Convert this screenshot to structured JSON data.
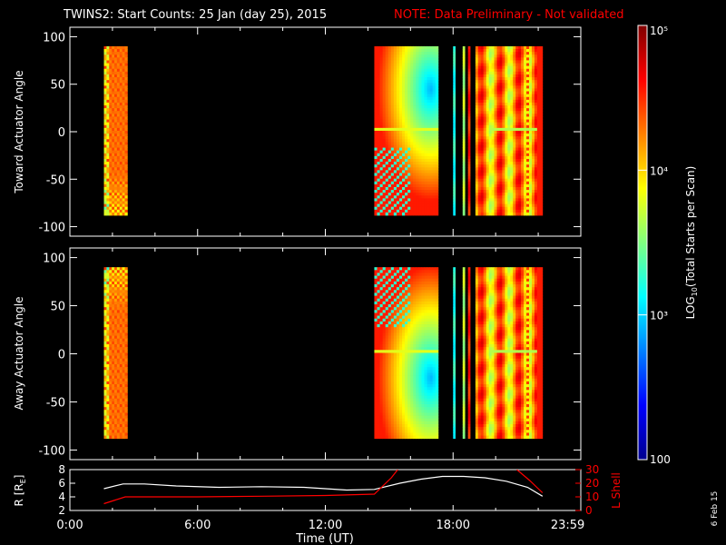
{
  "title": {
    "main": "TWINS2: Start Counts: 25 Jan (day  25), 2015",
    "note": "NOTE: Data Preliminary - Not validated",
    "note_color": "#ff0000"
  },
  "colorbar": {
    "label_pre": "LOG",
    "label_sub": "10",
    "label_post": "(Total Starts per Scan)",
    "ticks": [
      {
        "value": 100,
        "text": "100"
      },
      {
        "value": 1000,
        "text": "10³"
      },
      {
        "value": 10000,
        "text": "10⁴"
      },
      {
        "value": 100000,
        "text": "10⁵"
      }
    ],
    "range": [
      100,
      100000
    ],
    "scale": "log"
  },
  "stamp": "6 Feb 15",
  "chart_data": [
    {
      "type": "heatmap",
      "ylabel": "Toward Actuator Angle",
      "xlim": [
        0,
        24
      ],
      "ylim": [
        -110,
        110
      ],
      "yticks": [
        100,
        50,
        0,
        -50,
        -100
      ],
      "angle_range": [
        -88,
        90
      ],
      "blocks": [
        {
          "t0": 1.6,
          "t1": 2.7,
          "level": 0.8,
          "pattern": "edge-striped"
        },
        {
          "t0": 14.3,
          "t1": 17.3,
          "level": 0.45,
          "pattern": "cyan-core"
        },
        {
          "t0": 18.0,
          "t1": 18.1,
          "level": 0.4,
          "pattern": "line"
        },
        {
          "t0": 18.45,
          "t1": 18.55,
          "level": 0.55,
          "pattern": "line"
        },
        {
          "t0": 18.7,
          "t1": 18.8,
          "level": 0.85,
          "pattern": "line"
        },
        {
          "t0": 19.05,
          "t1": 22.2,
          "level": 0.78,
          "pattern": "banded"
        }
      ]
    },
    {
      "type": "heatmap",
      "ylabel": "Away Actuator Angle",
      "xlim": [
        0,
        24
      ],
      "ylim": [
        -110,
        110
      ],
      "yticks": [
        100,
        50,
        0,
        -50,
        -100
      ],
      "angle_range": [
        -88,
        90
      ],
      "blocks": [
        {
          "t0": 1.6,
          "t1": 2.7,
          "level": 0.8,
          "pattern": "edge-striped"
        },
        {
          "t0": 14.3,
          "t1": 17.3,
          "level": 0.45,
          "pattern": "cyan-core"
        },
        {
          "t0": 18.0,
          "t1": 18.1,
          "level": 0.4,
          "pattern": "line"
        },
        {
          "t0": 18.45,
          "t1": 18.55,
          "level": 0.55,
          "pattern": "line"
        },
        {
          "t0": 18.7,
          "t1": 18.8,
          "level": 0.85,
          "pattern": "line"
        },
        {
          "t0": 19.05,
          "t1": 22.2,
          "level": 0.78,
          "pattern": "banded"
        }
      ]
    },
    {
      "type": "line",
      "ylabel": "R [R",
      "ylabel_sub": "E",
      "ylabel_close": "]",
      "ylabel_right": "L Shell",
      "xlabel": "Time (UT)",
      "xlim": [
        0,
        24
      ],
      "ylim": [
        2,
        8
      ],
      "yticks": [
        2,
        4,
        6,
        8
      ],
      "ylim_right": [
        0,
        30
      ],
      "yticks_right": [
        0,
        10,
        20,
        30
      ],
      "xticks": [
        {
          "value": 0,
          "text": "0:00"
        },
        {
          "value": 6,
          "text": "6:00"
        },
        {
          "value": 12,
          "text": "12:00"
        },
        {
          "value": 18,
          "text": "18:00"
        },
        {
          "value": 23.983,
          "text": "23:59"
        }
      ],
      "series": [
        {
          "color": "#ffffff",
          "axis": "left",
          "x": [
            1.6,
            2.5,
            3.5,
            5,
            7,
            9,
            11,
            13,
            14.3,
            15.5,
            16.5,
            17.5,
            18.5,
            19.5,
            20.5,
            21.5,
            22.2
          ],
          "y": [
            5.2,
            5.9,
            5.9,
            5.6,
            5.4,
            5.5,
            5.4,
            5.0,
            5.1,
            6.0,
            6.6,
            7.0,
            7.0,
            6.8,
            6.3,
            5.4,
            4.1
          ]
        },
        {
          "color": "#ff0000",
          "axis": "right",
          "x": [
            1.6,
            2.6,
            3.5,
            6,
            9,
            12,
            14.3,
            15.1,
            15.4
          ],
          "y": [
            5,
            10,
            10,
            10,
            10.5,
            11,
            12,
            24,
            30
          ]
        },
        {
          "color": "#ff0000",
          "axis": "right",
          "x": [
            21.0,
            21.6,
            22.2
          ],
          "y": [
            30,
            22,
            13
          ]
        }
      ]
    }
  ]
}
